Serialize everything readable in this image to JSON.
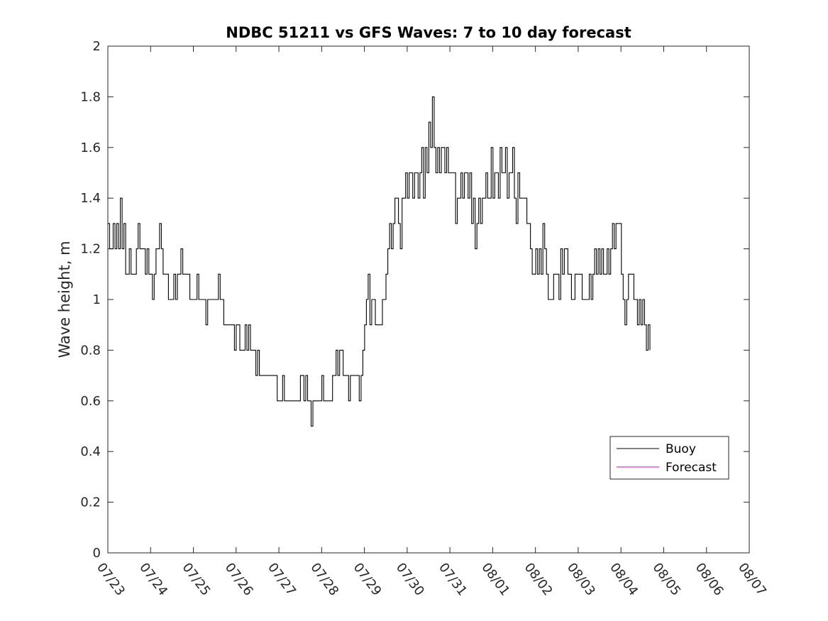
{
  "chart_data": {
    "type": "line",
    "title": "NDBC 51211 vs GFS Waves: 7 to 10 day forecast",
    "xlabel": "",
    "ylabel": "Wave height, m",
    "x_tick_labels": [
      "07/23",
      "07/24",
      "07/25",
      "07/26",
      "07/27",
      "07/28",
      "07/29",
      "07/30",
      "07/31",
      "08/01",
      "08/02",
      "08/03",
      "08/04",
      "08/05",
      "08/06",
      "08/07"
    ],
    "xlim_days": [
      0,
      15
    ],
    "ylim": [
      0,
      2
    ],
    "y_ticks": [
      0,
      0.2,
      0.4,
      0.6,
      0.8,
      1,
      1.2,
      1.4,
      1.6,
      1.8,
      2
    ],
    "y_tick_labels": [
      "0",
      "0.2",
      "0.4",
      "0.6",
      "0.8",
      "1",
      "1.2",
      "1.4",
      "1.6",
      "1.8",
      "2"
    ],
    "grid": false,
    "legend_position": "bottom-right",
    "series": [
      {
        "name": "Buoy",
        "color": "#000000",
        "step_days": 0.0417,
        "values": [
          1.3,
          1.2,
          1.2,
          1.3,
          1.2,
          1.3,
          1.2,
          1.4,
          1.2,
          1.3,
          1.1,
          1.1,
          1.2,
          1.1,
          1.1,
          1.1,
          1.2,
          1.3,
          1.2,
          1.2,
          1.2,
          1.1,
          1.2,
          1.1,
          1.1,
          1.0,
          1.1,
          1.2,
          1.2,
          1.3,
          1.2,
          1.1,
          1.1,
          1.1,
          1.0,
          1.0,
          1.0,
          1.1,
          1.0,
          1.1,
          1.1,
          1.2,
          1.1,
          1.1,
          1.1,
          1.1,
          1.0,
          1.0,
          1.0,
          1.0,
          1.1,
          1.0,
          1.0,
          1.0,
          1.0,
          0.9,
          1.0,
          1.0,
          1.0,
          1.0,
          1.0,
          1.0,
          1.1,
          1.0,
          1.0,
          0.9,
          0.9,
          0.9,
          0.9,
          0.9,
          0.9,
          0.8,
          0.9,
          0.9,
          0.8,
          0.8,
          0.8,
          0.9,
          0.8,
          0.9,
          0.8,
          0.8,
          0.8,
          0.7,
          0.8,
          0.7,
          0.7,
          0.7,
          0.7,
          0.7,
          0.7,
          0.7,
          0.7,
          0.7,
          0.7,
          0.6,
          0.6,
          0.6,
          0.7,
          0.6,
          0.6,
          0.6,
          0.6,
          0.6,
          0.6,
          0.6,
          0.6,
          0.6,
          0.7,
          0.7,
          0.6,
          0.7,
          0.6,
          0.6,
          0.5,
          0.6,
          0.6,
          0.6,
          0.6,
          0.6,
          0.7,
          0.6,
          0.6,
          0.6,
          0.6,
          0.6,
          0.7,
          0.7,
          0.8,
          0.7,
          0.8,
          0.8,
          0.7,
          0.7,
          0.7,
          0.6,
          0.7,
          0.7,
          0.7,
          0.7,
          0.7,
          0.6,
          0.7,
          0.8,
          0.9,
          1.0,
          1.1,
          0.9,
          1.0,
          1.0,
          0.9,
          0.9,
          0.9,
          0.9,
          1.0,
          1.0,
          1.1,
          1.2,
          1.3,
          1.2,
          1.3,
          1.4,
          1.4,
          1.3,
          1.2,
          1.4,
          1.4,
          1.5,
          1.4,
          1.5,
          1.5,
          1.4,
          1.5,
          1.5,
          1.4,
          1.5,
          1.6,
          1.4,
          1.6,
          1.5,
          1.7,
          1.6,
          1.8,
          1.6,
          1.5,
          1.6,
          1.5,
          1.6,
          1.6,
          1.5,
          1.6,
          1.5,
          1.5,
          1.5,
          1.5,
          1.3,
          1.4,
          1.4,
          1.5,
          1.4,
          1.5,
          1.5,
          1.4,
          1.5,
          1.3,
          1.4,
          1.2,
          1.3,
          1.4,
          1.3,
          1.4,
          1.4,
          1.5,
          1.4,
          1.4,
          1.6,
          1.4,
          1.5,
          1.5,
          1.4,
          1.6,
          1.5,
          1.5,
          1.6,
          1.4,
          1.5,
          1.5,
          1.6,
          1.4,
          1.3,
          1.5,
          1.4,
          1.4,
          1.4,
          1.4,
          1.3,
          1.3,
          1.2,
          1.1,
          1.1,
          1.2,
          1.1,
          1.2,
          1.1,
          1.3,
          1.2,
          1.1,
          1.0,
          1.0,
          1.0,
          1.1,
          1.1,
          1.1,
          1.0,
          1.2,
          1.1,
          1.2,
          1.2,
          1.1,
          1.1,
          1.0,
          1.0,
          1.1,
          1.1,
          1.1,
          1.1,
          1.0,
          1.0,
          1.0,
          1.0,
          1.1,
          1.0,
          1.1,
          1.2,
          1.1,
          1.2,
          1.1,
          1.2,
          1.1,
          1.1,
          1.2,
          1.1,
          1.2,
          1.3,
          1.2,
          1.3,
          1.3,
          1.3,
          1.1,
          1.0,
          0.9,
          1.0,
          1.1,
          1.1,
          1.1,
          1.0,
          1.0,
          0.9,
          1.0,
          0.9,
          1.0,
          0.9,
          0.8,
          0.9,
          0.8
        ]
      },
      {
        "name": "Forecast",
        "color": "#cc00cc",
        "values": []
      }
    ]
  }
}
